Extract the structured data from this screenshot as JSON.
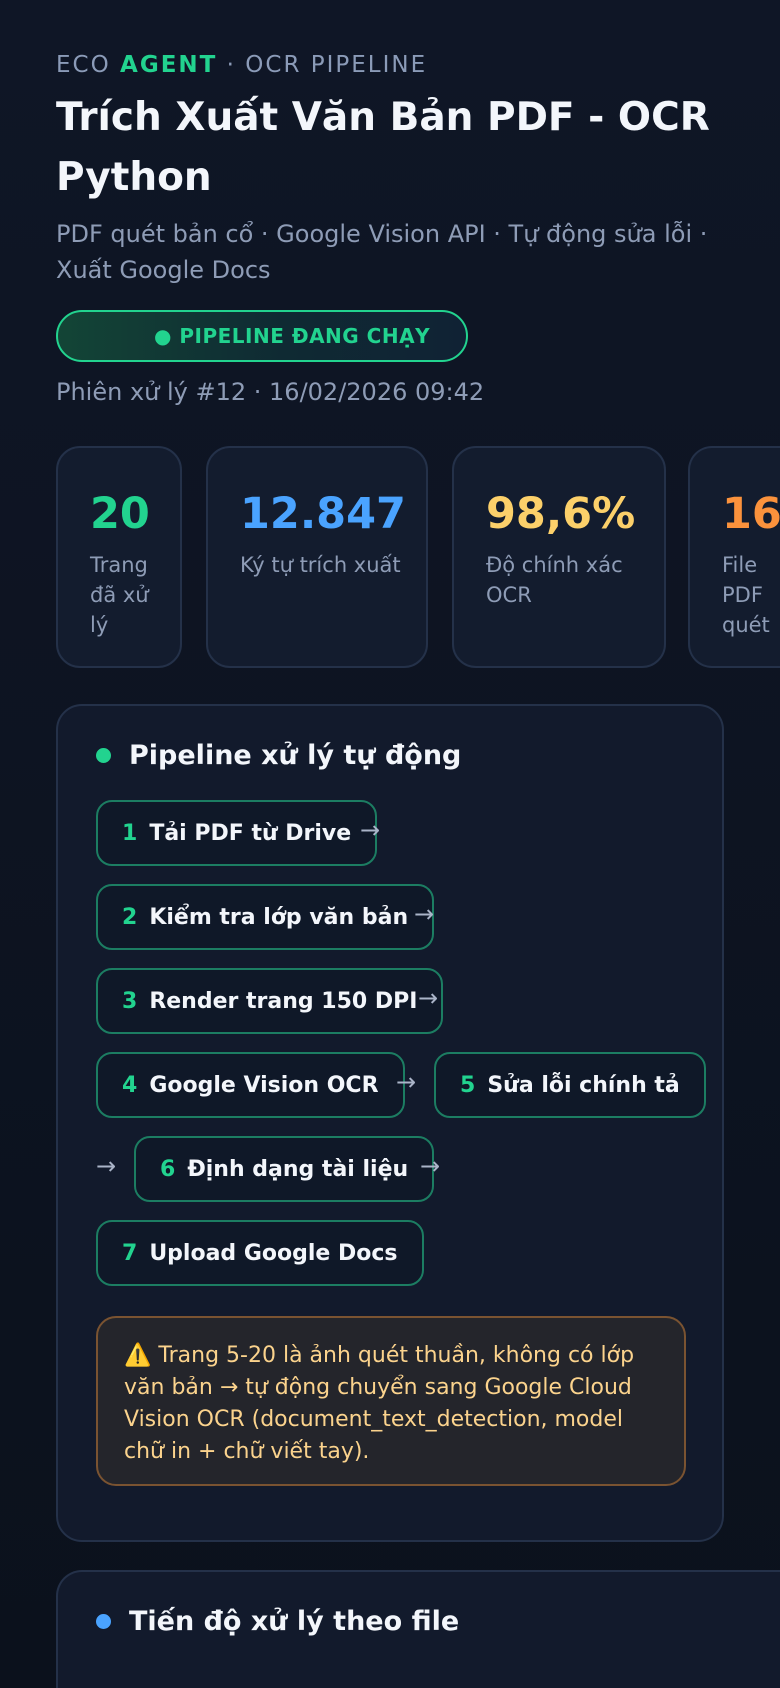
{
  "header": {
    "eyebrow_pre": "ECO ",
    "eyebrow_accent": "AGENT",
    "eyebrow_post": " · OCR PIPELINE",
    "title": "Trích Xuất Văn Bản PDF - OCR Python",
    "subtitle": "PDF quét bản cổ · Google Vision API · Tự động sửa lỗi · Xuất Google Docs",
    "status": "● PIPELINE ĐANG CHẠY",
    "session": "Phiên xử lý #12 · 16/02/2026 09:42"
  },
  "stats": [
    {
      "value": "20",
      "label": "Trang đã xử lý",
      "color": "#22d38f"
    },
    {
      "value": "12.847",
      "label": "Ký tự trích xuất",
      "color": "#4aa3ff"
    },
    {
      "value": "98,6%",
      "label": "Độ chính xác OCR",
      "color": "#fcd06a"
    },
    {
      "value": "16",
      "label": "File PDF quét",
      "color": "#fb923c"
    }
  ],
  "pipeline": {
    "title": "Pipeline xử lý tự động",
    "dot_color": "#22d38f",
    "arrow": "→",
    "steps": [
      {
        "num": "1",
        "label": "Tải PDF từ Drive"
      },
      {
        "num": "2",
        "label": "Kiểm tra lớp văn bản"
      },
      {
        "num": "3",
        "label": "Render trang 150 DPI"
      },
      {
        "num": "4",
        "label": "Google Vision OCR"
      },
      {
        "num": "5",
        "label": "Sửa lỗi chính tả"
      },
      {
        "num": "6",
        "label": "Định dạng tài liệu"
      },
      {
        "num": "7",
        "label": "Upload Google Docs"
      }
    ],
    "warning_icon": "⚠️",
    "warning": "Trang 5-20 là ảnh quét thuần, không có lớp văn bản → tự động chuyển sang Google Cloud Vision OCR (document_text_detection, model chữ in + chữ viết tay)."
  },
  "progress": {
    "title": "Tiến độ xử lý theo file",
    "dot_color": "#4aa3ff"
  }
}
